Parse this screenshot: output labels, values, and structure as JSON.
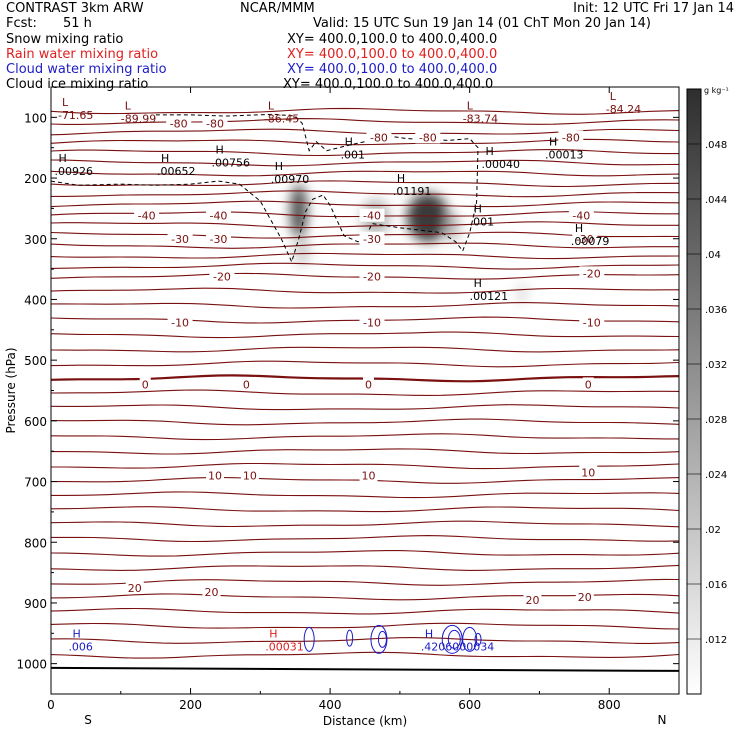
{
  "header": {
    "model": "CONTRAST  3km ARW",
    "org": "NCAR/MMM",
    "init": "Init: 12 UTC Fri 17 Jan 14",
    "fcst_label": "Fcst:",
    "fcst_value": "51 h",
    "valid": "Valid: 15 UTC Sun 19 Jan 14 (01 ChT Mon 20 Jan 14)"
  },
  "fields": [
    {
      "name": "Snow mixing ratio",
      "xy": "XY= 400.0,100.0 to 400.0,400.0",
      "color": "#000000"
    },
    {
      "name": "Rain water mixing ratio",
      "xy": "XY= 400.0,100.0 to 400.0,400.0",
      "color": "#e02020"
    },
    {
      "name": "Cloud water mixing ratio",
      "xy": "XY= 400.0,100.0 to 400.0,400.0",
      "color": "#1c1cc8"
    },
    {
      "name": "Cloud ice mixing ratio",
      "xy": "XY= 400.0,100.0 to 400.0,400.0",
      "color": "#000000"
    }
  ],
  "colors": {
    "temperature": "#7a1010",
    "rain": "#e02020",
    "cloud": "#1c1cc8",
    "ice": "#000000"
  },
  "chart_data": {
    "type": "heatmap",
    "xlabel": "Distance (km)",
    "ylabel": "Pressure (hPa)",
    "xlim": [
      0,
      900
    ],
    "ylim": [
      1050,
      50
    ],
    "xticks": [
      0,
      200,
      400,
      600,
      800
    ],
    "xtick_labels": [
      "0",
      "200",
      "400",
      "600",
      "800"
    ],
    "yticks": [
      100,
      200,
      300,
      400,
      500,
      600,
      700,
      800,
      900,
      1000
    ],
    "ytick_labels": [
      "100",
      "200",
      "300",
      "400",
      "500",
      "600",
      "700",
      "800",
      "900",
      "1000"
    ],
    "endpoints": {
      "left": "S",
      "right": "N"
    },
    "colorbar": {
      "units": "g kg⁻¹",
      "ticks": [
        0.012,
        0.016,
        0.02,
        0.024,
        0.028,
        0.032,
        0.036,
        0.04,
        0.044,
        0.048
      ],
      "tick_labels": [
        ".012",
        ".016",
        ".02",
        ".024",
        ".028",
        ".032",
        ".036",
        ".04",
        ".044",
        ".048"
      ],
      "range": [
        0.008,
        0.052
      ]
    },
    "temperature_contours": [
      {
        "level": -80,
        "labels": [
          {
            "text": "-80",
            "x": 183,
            "p": 110
          },
          {
            "text": "-80",
            "x": 235,
            "p": 110
          },
          {
            "text": "-80",
            "x": 470,
            "p": 133
          },
          {
            "text": "-80",
            "x": 540,
            "p": 133
          },
          {
            "text": "-80",
            "x": 745,
            "p": 133
          }
        ]
      },
      {
        "level": -40,
        "labels": [
          {
            "text": "-40",
            "x": 137,
            "p": 262
          },
          {
            "text": "-40",
            "x": 240,
            "p": 262
          },
          {
            "text": "-40",
            "x": 460,
            "p": 262
          },
          {
            "text": "-40",
            "x": 760,
            "p": 262
          }
        ]
      },
      {
        "level": -30,
        "labels": [
          {
            "text": "-30",
            "x": 185,
            "p": 300
          },
          {
            "text": "-30",
            "x": 240,
            "p": 300
          },
          {
            "text": "-30",
            "x": 460,
            "p": 300
          },
          {
            "text": "-30",
            "x": 765,
            "p": 300
          }
        ]
      },
      {
        "level": -20,
        "labels": [
          {
            "text": "-20",
            "x": 245,
            "p": 362
          },
          {
            "text": "-20",
            "x": 460,
            "p": 362
          },
          {
            "text": "-20",
            "x": 775,
            "p": 357
          }
        ]
      },
      {
        "level": -10,
        "labels": [
          {
            "text": "-10",
            "x": 185,
            "p": 438
          },
          {
            "text": "-10",
            "x": 460,
            "p": 438
          },
          {
            "text": "-10",
            "x": 775,
            "p": 438
          }
        ]
      },
      {
        "level": 0,
        "labels": [
          {
            "text": "0",
            "x": 135,
            "p": 540
          },
          {
            "text": "0",
            "x": 280,
            "p": 540
          },
          {
            "text": "0",
            "x": 455,
            "p": 540
          },
          {
            "text": "0",
            "x": 770,
            "p": 540
          }
        ]
      },
      {
        "level": 10,
        "labels": [
          {
            "text": "10",
            "x": 235,
            "p": 690
          },
          {
            "text": "10",
            "x": 285,
            "p": 690
          },
          {
            "text": "10",
            "x": 455,
            "p": 690
          },
          {
            "text": "10",
            "x": 770,
            "p": 685
          }
        ]
      },
      {
        "level": 20,
        "labels": [
          {
            "text": "20",
            "x": 120,
            "p": 875
          },
          {
            "text": "20",
            "x": 230,
            "p": 882
          },
          {
            "text": "20",
            "x": 690,
            "p": 895
          },
          {
            "text": "20",
            "x": 765,
            "p": 890
          }
        ]
      }
    ],
    "extrema_labels": [
      {
        "type": "L",
        "value": "-71.65",
        "x": 10,
        "p": 85,
        "color": "ice"
      },
      {
        "type": "L",
        "value": "-89.99",
        "x": 100,
        "p": 90,
        "color": "ice"
      },
      {
        "type": "L",
        "value": "-86.45",
        "x": 305,
        "p": 90,
        "color": "ice"
      },
      {
        "type": "L",
        "value": "-83.74",
        "x": 590,
        "p": 90,
        "color": "ice"
      },
      {
        "type": "L",
        "value": "-84.24",
        "x": 795,
        "p": 75,
        "color": "ice"
      },
      {
        "type": "H",
        "value": ".00926",
        "x": 5,
        "p": 177,
        "color": "ice"
      },
      {
        "type": "H",
        "value": ".00652",
        "x": 152,
        "p": 177,
        "color": "ice"
      },
      {
        "type": "H",
        "value": ".00756",
        "x": 230,
        "p": 163,
        "color": "ice"
      },
      {
        "type": "H",
        "value": ".00970",
        "x": 315,
        "p": 190,
        "color": "ice"
      },
      {
        "type": "H",
        "value": ".01191",
        "x": 490,
        "p": 210,
        "color": "ice"
      },
      {
        "type": "H",
        "value": ".001",
        "x": 415,
        "p": 150,
        "color": "ice"
      },
      {
        "type": "H",
        "value": ".001",
        "x": 600,
        "p": 260,
        "color": "ice"
      },
      {
        "type": "H",
        "value": ".00040",
        "x": 617,
        "p": 165,
        "color": "ice"
      },
      {
        "type": "H",
        "value": ".00013",
        "x": 708,
        "p": 150,
        "color": "ice"
      },
      {
        "type": "H",
        "value": ".00079",
        "x": 745,
        "p": 292,
        "color": "ice"
      },
      {
        "type": "H",
        "value": ".00121",
        "x": 600,
        "p": 383,
        "color": "ice"
      },
      {
        "type": "H",
        "value": ".006",
        "x": 25,
        "p": 960,
        "color": "cloud"
      },
      {
        "type": "H",
        "value": ".00031",
        "x": 307,
        "p": 960,
        "color": "rain"
      },
      {
        "type": "H",
        "value": ".4206000034",
        "x": 530,
        "p": 960,
        "color": "cloud"
      }
    ],
    "snow_cells": [
      {
        "x": 355,
        "p": 255,
        "sigma_km": 12,
        "sigma_hpa": 45,
        "value": 0.046
      },
      {
        "x": 360,
        "p": 320,
        "sigma_km": 10,
        "sigma_hpa": 25,
        "value": 0.02
      },
      {
        "x": 465,
        "p": 265,
        "sigma_km": 20,
        "sigma_hpa": 30,
        "value": 0.024
      },
      {
        "x": 540,
        "p": 265,
        "sigma_km": 30,
        "sigma_hpa": 40,
        "value": 0.05
      },
      {
        "x": 575,
        "p": 280,
        "sigma_km": 10,
        "sigma_hpa": 25,
        "value": 0.024
      },
      {
        "x": 675,
        "p": 390,
        "sigma_km": 7,
        "sigma_hpa": 18,
        "value": 0.016
      }
    ]
  }
}
